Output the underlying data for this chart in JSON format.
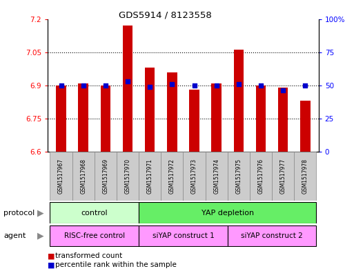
{
  "title": "GDS5914 / 8123558",
  "samples": [
    "GSM1517967",
    "GSM1517968",
    "GSM1517969",
    "GSM1517970",
    "GSM1517971",
    "GSM1517972",
    "GSM1517973",
    "GSM1517974",
    "GSM1517975",
    "GSM1517976",
    "GSM1517977",
    "GSM1517978"
  ],
  "bar_values": [
    6.9,
    6.91,
    6.9,
    7.17,
    6.98,
    6.96,
    6.88,
    6.91,
    7.06,
    6.9,
    6.89,
    6.83
  ],
  "percentile_values": [
    50,
    50,
    50,
    53,
    49,
    51,
    50,
    50,
    51,
    50,
    46,
    50
  ],
  "bar_color": "#cc0000",
  "dot_color": "#0000cc",
  "ylim_left": [
    6.6,
    7.2
  ],
  "ylim_right": [
    0,
    100
  ],
  "yticks_left": [
    6.6,
    6.75,
    6.9,
    7.05,
    7.2
  ],
  "yticks_right": [
    0,
    25,
    50,
    75,
    100
  ],
  "ytick_labels_left": [
    "6.6",
    "6.75",
    "6.9",
    "7.05",
    "7.2"
  ],
  "ytick_labels_right": [
    "0",
    "25",
    "50",
    "75",
    "100%"
  ],
  "hlines": [
    6.75,
    6.9,
    7.05
  ],
  "bar_bottom": 6.6,
  "protocol_label_left": "control",
  "protocol_label_right": "YAP depletion",
  "protocol_color_light": "#ccffcc",
  "protocol_color_dark": "#66ee66",
  "agent_labels": [
    "RISC-free control",
    "siYAP construct 1",
    "siYAP construct 2"
  ],
  "agent_color": "#ff99ff",
  "legend_items": [
    "transformed count",
    "percentile rank within the sample"
  ],
  "sample_bg": "#cccccc",
  "chart_bg": "#ffffff",
  "fig_bg": "#ffffff"
}
